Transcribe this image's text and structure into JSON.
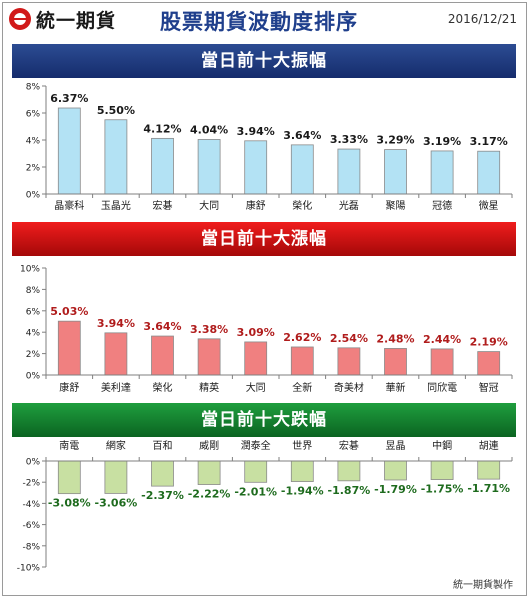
{
  "header": {
    "brand": "統一期貨",
    "title": "股票期貨波動度排序",
    "date": "2016/12/21"
  },
  "footer": {
    "credit": "統一期貨製作"
  },
  "colors": {
    "amplitude_bar": "#b3e2f4",
    "amplitude_label": "#1a1a1a",
    "gainers_bar": "#f08080",
    "gainers_label": "#b01c1c",
    "losers_bar": "#c8e0a2",
    "losers_label": "#1e6b1e"
  },
  "chart_data": [
    {
      "id": "amplitude",
      "title": "當日前十大振幅",
      "type": "bar",
      "categories": [
        "晶豪科",
        "玉晶光",
        "宏碁",
        "大同",
        "康舒",
        "榮化",
        "光磊",
        "聚陽",
        "冠德",
        "微星"
      ],
      "values": [
        6.37,
        5.5,
        4.12,
        4.04,
        3.94,
        3.64,
        3.33,
        3.29,
        3.19,
        3.17
      ],
      "value_labels": [
        "6.37%",
        "5.50%",
        "4.12%",
        "4.04%",
        "3.94%",
        "3.64%",
        "3.33%",
        "3.29%",
        "3.19%",
        "3.17%"
      ],
      "yticks": [
        "0%",
        "2%",
        "4%",
        "6%",
        "8%"
      ],
      "ylim": [
        0,
        8
      ],
      "xlabel": "",
      "ylabel": "",
      "grid": false
    },
    {
      "id": "gainers",
      "title": "當日前十大漲幅",
      "type": "bar",
      "categories": [
        "康舒",
        "美利達",
        "榮化",
        "精英",
        "大同",
        "全新",
        "奇美材",
        "華新",
        "同欣電",
        "智冠"
      ],
      "values": [
        5.03,
        3.94,
        3.64,
        3.38,
        3.09,
        2.62,
        2.54,
        2.48,
        2.44,
        2.19
      ],
      "value_labels": [
        "5.03%",
        "3.94%",
        "3.64%",
        "3.38%",
        "3.09%",
        "2.62%",
        "2.54%",
        "2.48%",
        "2.44%",
        "2.19%"
      ],
      "yticks": [
        "0%",
        "2%",
        "4%",
        "6%",
        "8%",
        "10%"
      ],
      "ylim": [
        0,
        10
      ],
      "xlabel": "",
      "ylabel": "",
      "grid": false
    },
    {
      "id": "losers",
      "title": "當日前十大跌幅",
      "type": "bar",
      "categories": [
        "南電",
        "網家",
        "百和",
        "威剛",
        "潤泰全",
        "世界",
        "宏碁",
        "昱晶",
        "中鋼",
        "胡連"
      ],
      "values": [
        -3.08,
        -3.06,
        -2.37,
        -2.22,
        -2.01,
        -1.94,
        -1.87,
        -1.79,
        -1.75,
        -1.71
      ],
      "value_labels": [
        "-3.08%",
        "-3.06%",
        "-2.37%",
        "-2.22%",
        "-2.01%",
        "-1.94%",
        "-1.87%",
        "-1.79%",
        "-1.75%",
        "-1.71%"
      ],
      "yticks": [
        "0%",
        "-2%",
        "-4%",
        "-6%",
        "-8%",
        "-10%"
      ],
      "ylim": [
        -10,
        0
      ],
      "xlabel": "",
      "ylabel": "",
      "grid": false
    }
  ]
}
